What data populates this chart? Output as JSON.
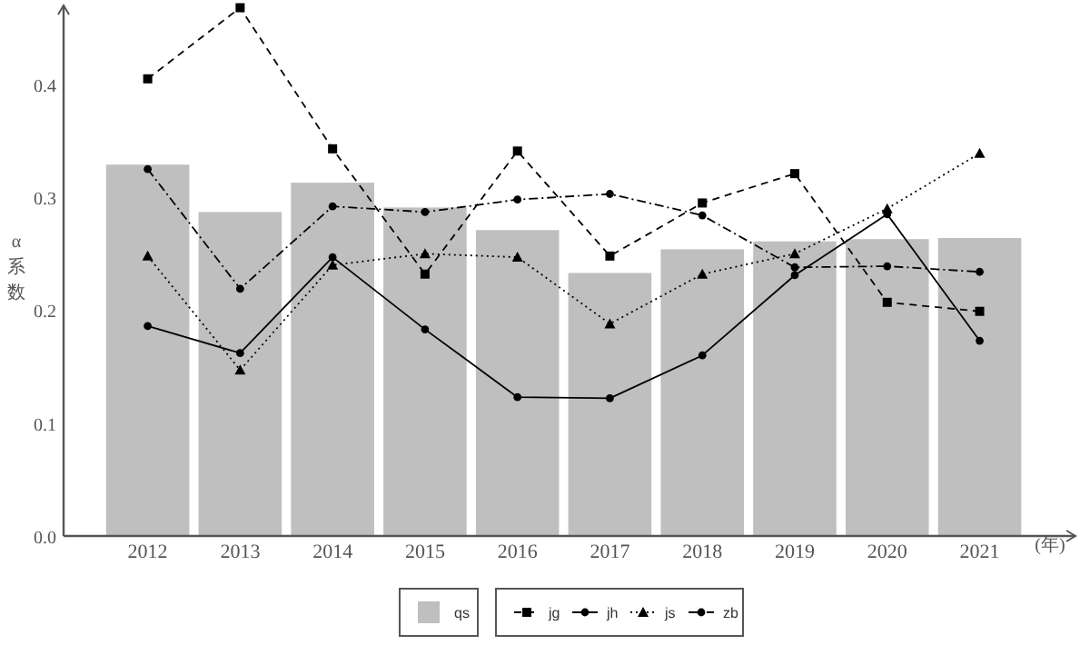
{
  "chart_data": {
    "type": "bar",
    "ylabel": "α系数",
    "xlabel": "(年)",
    "categories": [
      "2012",
      "2013",
      "2014",
      "2015",
      "2016",
      "2017",
      "2018",
      "2019",
      "2020",
      "2021"
    ],
    "series": [
      {
        "name": "qs",
        "color": "#bfbfbf",
        "values": [
          0.329,
          0.287,
          0.313,
          0.291,
          0.271,
          0.233,
          0.254,
          0.261,
          0.263,
          0.264
        ]
      },
      {
        "name": "jg",
        "type": "line",
        "color": "#000000",
        "marker": "square",
        "line_style": "dashed",
        "values": [
          0.405,
          0.468,
          0.343,
          0.232,
          0.341,
          0.248,
          0.295,
          0.321,
          0.207,
          0.199
        ]
      },
      {
        "name": "jh",
        "type": "line",
        "color": "#000000",
        "marker": "circle",
        "line_style": "solid",
        "values": [
          0.186,
          0.162,
          0.247,
          0.183,
          0.123,
          0.122,
          0.16,
          0.231,
          0.285,
          0.173
        ]
      },
      {
        "name": "js",
        "type": "line",
        "color": "#000000",
        "marker": "triangle",
        "line_style": "dotted",
        "values": [
          0.248,
          0.147,
          0.24,
          0.25,
          0.247,
          0.188,
          0.232,
          0.25,
          0.29,
          0.339
        ]
      },
      {
        "name": "zb",
        "type": "line",
        "color": "#000000",
        "marker": "circle",
        "line_style": "dashdot",
        "values": [
          0.325,
          0.219,
          0.292,
          0.287,
          0.298,
          0.303,
          0.284,
          0.238,
          0.239,
          0.234
        ]
      }
    ],
    "ylim": [
      0,
      0.47
    ],
    "yticks": [
      {
        "value": 0,
        "label": "0.0"
      },
      0.1,
      0.2,
      0.3,
      0.4
    ],
    "grid": false,
    "legend": "bottom"
  }
}
